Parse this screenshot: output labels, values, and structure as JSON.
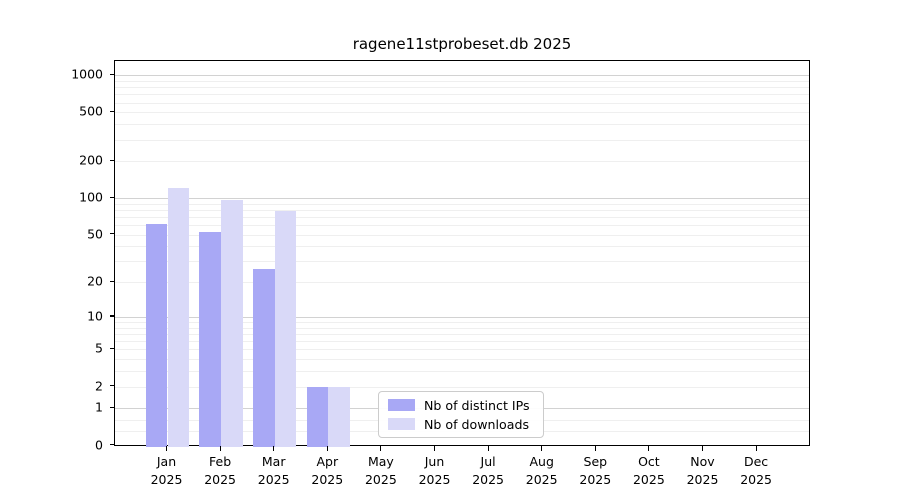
{
  "chart_data": {
    "type": "bar",
    "title": "ragene11stprobeset.db 2025",
    "year": "2025",
    "categories": [
      "Jan",
      "Feb",
      "Mar",
      "Apr",
      "May",
      "Jun",
      "Jul",
      "Aug",
      "Sep",
      "Oct",
      "Nov",
      "Dec"
    ],
    "series": [
      {
        "name": "Nb of distinct IPs",
        "color": "#a8a8f5",
        "values": [
          61,
          53,
          26,
          2,
          0,
          0,
          0,
          0,
          0,
          0,
          0,
          0
        ]
      },
      {
        "name": "Nb of downloads",
        "color": "#d9d9f8",
        "values": [
          122,
          96,
          78,
          2,
          0,
          0,
          0,
          0,
          0,
          0,
          0,
          0
        ]
      }
    ],
    "y_scale": "log1p",
    "y_ticks": [
      0,
      1,
      2,
      5,
      10,
      20,
      50,
      100,
      200,
      500,
      1000
    ],
    "major_gridlines": [
      1,
      10,
      100,
      1000
    ],
    "minor_gridlines": [
      0.3,
      0.6,
      2,
      3,
      4,
      5,
      6,
      7,
      8,
      9,
      20,
      30,
      40,
      50,
      60,
      70,
      80,
      90,
      200,
      300,
      400,
      500,
      600,
      700,
      800,
      900
    ],
    "ylim": [
      0,
      1270
    ],
    "grid": true,
    "legend_position": "lower center",
    "legend_entries": [
      "Nb of distinct IPs",
      "Nb of downloads"
    ]
  },
  "colors": {
    "background": "#ffffff",
    "axis": "#000000",
    "major_grid": "#d2d2d2",
    "minor_grid": "#efefef",
    "legend_border": "#cccccc",
    "bar_distinct_ips": "#a8a8f5",
    "bar_downloads": "#d9d9f8"
  }
}
